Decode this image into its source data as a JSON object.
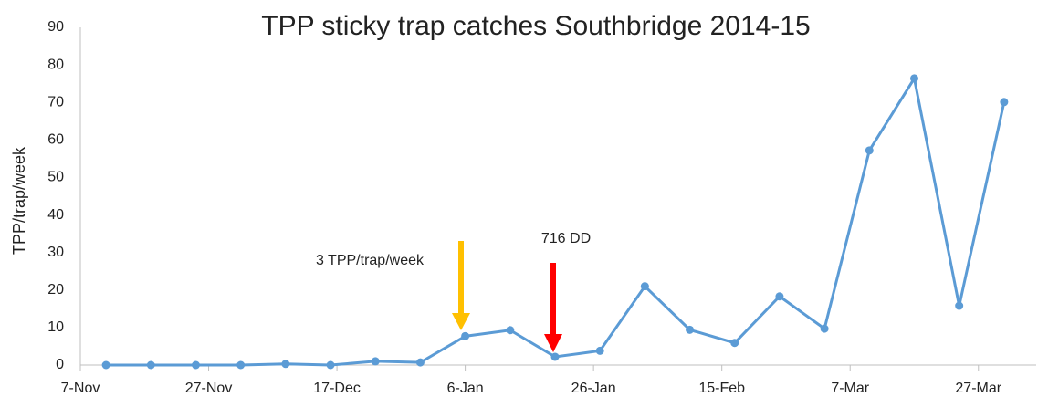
{
  "chart_data": {
    "type": "line",
    "title": "TPP sticky trap catches Southbridge 2014-15",
    "y_label": "TPP/trap/week",
    "annotations": [
      "3 TPP/trap/week",
      "716 DD"
    ],
    "x": [
      4,
      11,
      18,
      25,
      32,
      39,
      46,
      53,
      60,
      67,
      74,
      81,
      88,
      95,
      102,
      109,
      116,
      123,
      130,
      137,
      144
    ],
    "series": [
      {
        "name": "TPP",
        "color": "#5b9bd5",
        "values": [
          0,
          0,
          0,
          0,
          0.3,
          0,
          1,
          0.7,
          7.7,
          9.3,
          2.2,
          3.8,
          21,
          9.4,
          5.9,
          18.3,
          9.7,
          57.2,
          76.4,
          15.8,
          70.1
        ]
      }
    ],
    "xlim": [
      0,
      149
    ],
    "xticks": [
      {
        "value": 0,
        "label": "7-Nov"
      },
      {
        "value": 20,
        "label": "27-Nov"
      },
      {
        "value": 40,
        "label": "17-Dec"
      },
      {
        "value": 60,
        "label": "6-Jan"
      },
      {
        "value": 80,
        "label": "26-Jan"
      },
      {
        "value": 100,
        "label": "15-Feb"
      },
      {
        "value": 120,
        "label": "7-Mar"
      },
      {
        "value": 140,
        "label": "27-Mar"
      }
    ],
    "ylim": [
      0,
      90
    ],
    "yticks": [
      0,
      10,
      20,
      30,
      40,
      50,
      60,
      70,
      80,
      90
    ],
    "grid": false
  }
}
